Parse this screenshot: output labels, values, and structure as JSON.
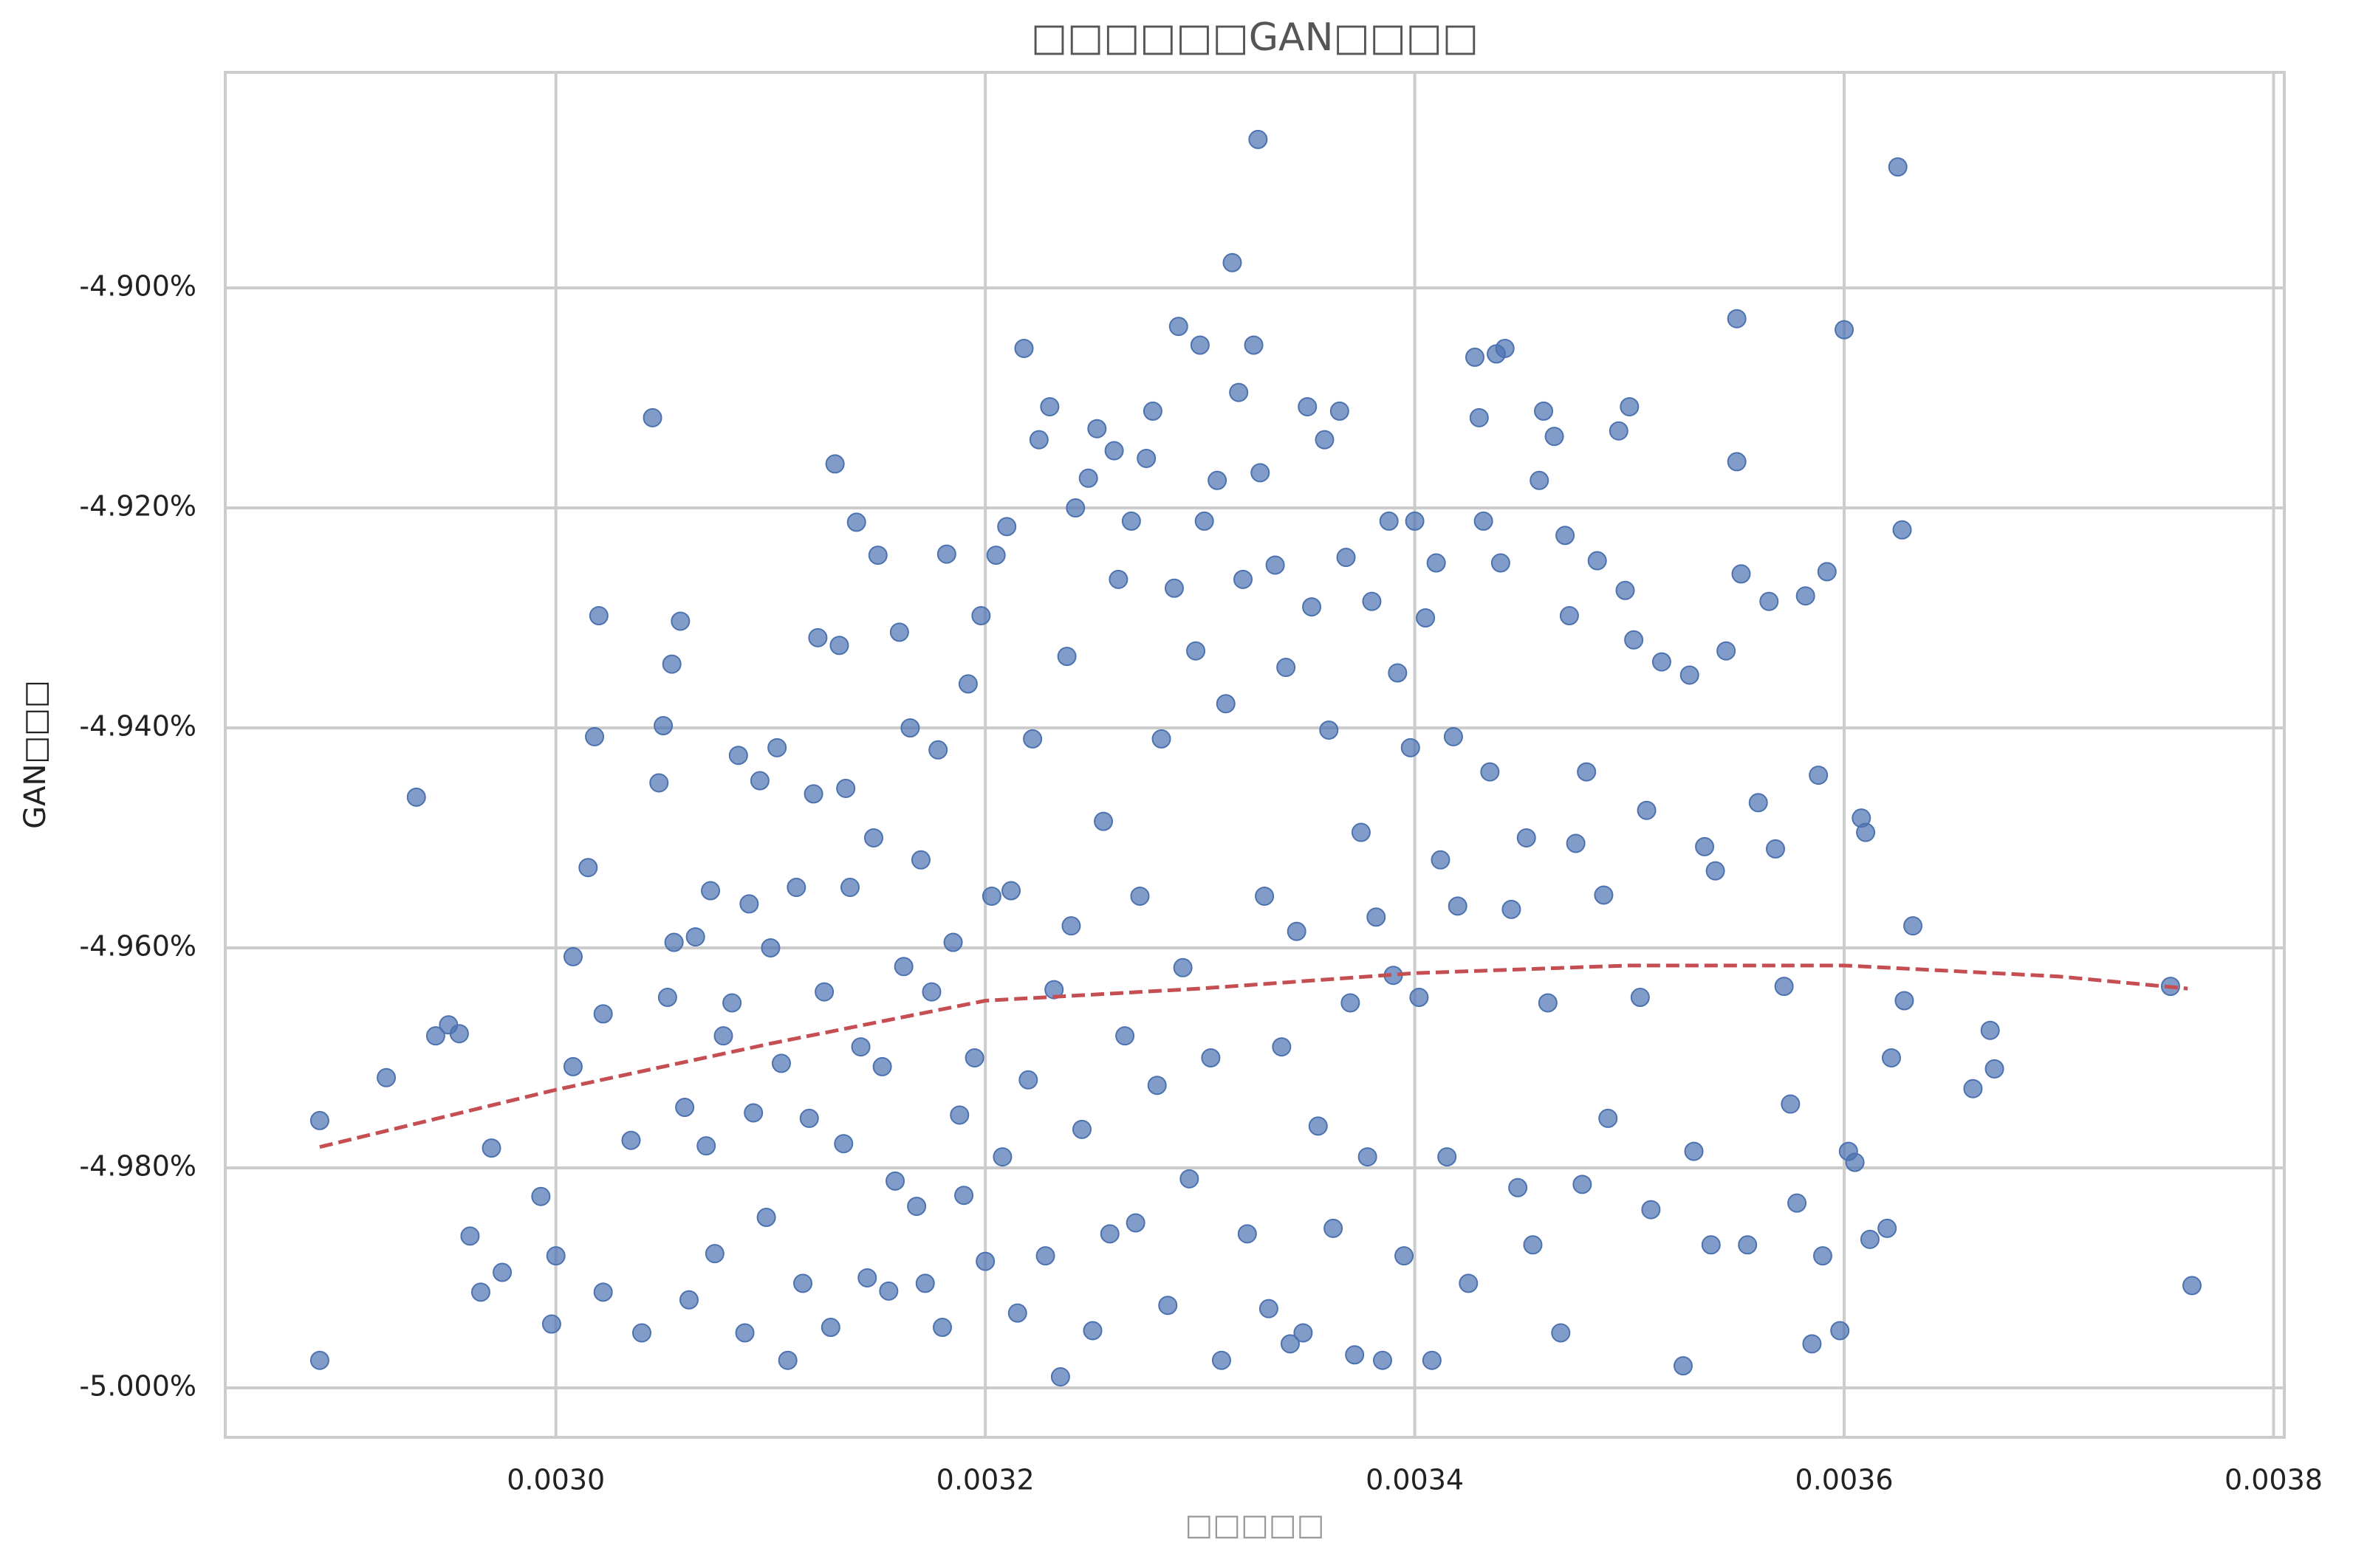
{
  "chart_data": {
    "type": "scatter",
    "title": "□□□□□□GAN□□□□",
    "xlabel": "□□□□□",
    "ylabel": "GAN□□□",
    "xlim": [
      0.002846,
      0.003805
    ],
    "ylim": [
      -5.0045,
      -4.8804
    ],
    "xticks": [
      {
        "value": 0.003,
        "label": "0.0030"
      },
      {
        "value": 0.0032,
        "label": "0.0032"
      },
      {
        "value": 0.0034,
        "label": "0.0034"
      },
      {
        "value": 0.0036,
        "label": "0.0036"
      },
      {
        "value": 0.0038,
        "label": "0.0038"
      }
    ],
    "yticks": [
      {
        "value": -4.9,
        "label": "-4.900%"
      },
      {
        "value": -4.92,
        "label": "-4.920%"
      },
      {
        "value": -4.94,
        "label": "-4.940%"
      },
      {
        "value": -4.96,
        "label": "-4.960%"
      },
      {
        "value": -4.98,
        "label": "-4.980%"
      },
      {
        "value": -5.0,
        "label": "-5.000%"
      }
    ],
    "grid": true,
    "series": [
      {
        "type": "scatter",
        "color": "#4c72b0",
        "x": [
          0.00289,
          0.00289,
          0.002921,
          0.002935,
          0.002944,
          0.00295,
          0.002955,
          0.00296,
          0.002965,
          0.00297,
          0.002975,
          0.002993,
          0.002998,
          0.003,
          0.003008,
          0.003008,
          0.003015,
          0.003018,
          0.00302,
          0.003022,
          0.003022,
          0.003035,
          0.00304,
          0.003045,
          0.003048,
          0.00305,
          0.003052,
          0.003054,
          0.003055,
          0.003058,
          0.00306,
          0.003062,
          0.003065,
          0.00307,
          0.003072,
          0.003074,
          0.003078,
          0.003082,
          0.003085,
          0.003088,
          0.00309,
          0.003092,
          0.003095,
          0.003098,
          0.0031,
          0.003103,
          0.003105,
          0.003108,
          0.003112,
          0.003115,
          0.003118,
          0.00312,
          0.003122,
          0.003125,
          0.003128,
          0.00313,
          0.003132,
          0.003134,
          0.003135,
          0.003137,
          0.00314,
          0.003142,
          0.003145,
          0.003148,
          0.00315,
          0.003152,
          0.003155,
          0.003158,
          0.00316,
          0.003162,
          0.003165,
          0.003168,
          0.00317,
          0.003172,
          0.003175,
          0.003178,
          0.00318,
          0.003182,
          0.003185,
          0.003188,
          0.00319,
          0.003192,
          0.003195,
          0.003198,
          0.0032,
          0.003203,
          0.003205,
          0.003208,
          0.00321,
          0.003212,
          0.003215,
          0.003218,
          0.00322,
          0.003222,
          0.003225,
          0.003228,
          0.00323,
          0.003232,
          0.003235,
          0.003238,
          0.00324,
          0.003242,
          0.003245,
          0.003248,
          0.00325,
          0.003252,
          0.003255,
          0.003258,
          0.00326,
          0.003262,
          0.003265,
          0.003268,
          0.00327,
          0.003272,
          0.003275,
          0.003278,
          0.00328,
          0.003282,
          0.003285,
          0.003288,
          0.00329,
          0.003292,
          0.003295,
          0.003298,
          0.0033,
          0.003302,
          0.003305,
          0.003308,
          0.00331,
          0.003312,
          0.003315,
          0.003318,
          0.00332,
          0.003322,
          0.003325,
          0.003327,
          0.003328,
          0.00333,
          0.003332,
          0.003335,
          0.003338,
          0.00334,
          0.003342,
          0.003345,
          0.003348,
          0.00335,
          0.003352,
          0.003355,
          0.003358,
          0.00336,
          0.003362,
          0.003365,
          0.003368,
          0.00337,
          0.003372,
          0.003375,
          0.003378,
          0.00338,
          0.003382,
          0.003385,
          0.003388,
          0.00339,
          0.003392,
          0.003395,
          0.003398,
          0.0034,
          0.003402,
          0.003405,
          0.003408,
          0.00341,
          0.003412,
          0.003415,
          0.003418,
          0.00342,
          0.003425,
          0.003428,
          0.00343,
          0.003432,
          0.003435,
          0.003438,
          0.00344,
          0.003442,
          0.003445,
          0.003448,
          0.003452,
          0.003455,
          0.003458,
          0.00346,
          0.003462,
          0.003465,
          0.003468,
          0.00347,
          0.003472,
          0.003475,
          0.003478,
          0.00348,
          0.003485,
          0.003488,
          0.00349,
          0.003495,
          0.003498,
          0.0035,
          0.003502,
          0.003505,
          0.003508,
          0.00351,
          0.003515,
          0.003525,
          0.003528,
          0.00353,
          0.003535,
          0.003538,
          0.00354,
          0.003545,
          0.00355,
          0.00355,
          0.003552,
          0.003555,
          0.00356,
          0.003565,
          0.003568,
          0.003572,
          0.003575,
          0.003578,
          0.003582,
          0.003585,
          0.003588,
          0.00359,
          0.003592,
          0.003598,
          0.0036,
          0.003602,
          0.003605,
          0.003608,
          0.00361,
          0.003612,
          0.00362,
          0.003622,
          0.003625,
          0.003627,
          0.003628,
          0.003632,
          0.00366,
          0.003668,
          0.00367,
          0.003752,
          0.003762
        ],
        "values": [
          -4.9975,
          -4.9757,
          -4.9718,
          -4.9463,
          -4.968,
          -4.967,
          -4.9678,
          -4.9862,
          -4.9913,
          -4.9782,
          -4.9895,
          -4.9826,
          -4.9942,
          -4.988,
          -4.9608,
          -4.9708,
          -4.9527,
          -4.9408,
          -4.9298,
          -4.966,
          -4.9913,
          -4.9775,
          -4.995,
          -4.9118,
          -4.945,
          -4.9398,
          -4.9645,
          -4.9342,
          -4.9595,
          -4.9303,
          -4.9745,
          -4.992,
          -4.959,
          -4.978,
          -4.9548,
          -4.9878,
          -4.968,
          -4.965,
          -4.9425,
          -4.995,
          -4.956,
          -4.975,
          -4.9448,
          -4.9845,
          -4.96,
          -4.9418,
          -4.9705,
          -4.9975,
          -4.9545,
          -4.9905,
          -4.9755,
          -4.946,
          -4.9318,
          -4.964,
          -4.9945,
          -4.916,
          -4.9325,
          -4.9778,
          -4.9455,
          -4.9545,
          -4.9213,
          -4.969,
          -4.99,
          -4.95,
          -4.9243,
          -4.9708,
          -4.9912,
          -4.9812,
          -4.9313,
          -4.9617,
          -4.94,
          -4.9835,
          -4.952,
          -4.9905,
          -4.964,
          -4.942,
          -4.9945,
          -4.9242,
          -4.9595,
          -4.9752,
          -4.9825,
          -4.936,
          -4.97,
          -4.9298,
          -4.9885,
          -4.9553,
          -4.9243,
          -4.979,
          -4.9217,
          -4.9548,
          -4.9932,
          -4.9055,
          -4.972,
          -4.941,
          -4.9138,
          -4.988,
          -4.9108,
          -4.9638,
          -4.999,
          -4.9335,
          -4.958,
          -4.92,
          -4.9765,
          -4.9173,
          -4.9948,
          -4.9128,
          -4.9485,
          -4.986,
          -4.9148,
          -4.9265,
          -4.968,
          -4.9212,
          -4.985,
          -4.9553,
          -4.9155,
          -4.9112,
          -4.9725,
          -4.941,
          -4.9925,
          -4.9273,
          -4.9035,
          -4.9618,
          -4.981,
          -4.933,
          -4.9052,
          -4.9212,
          -4.97,
          -4.9175,
          -4.9975,
          -4.9378,
          -4.8977,
          -4.9095,
          -4.9265,
          -4.986,
          -4.9052,
          -4.8865,
          -4.9168,
          -4.9553,
          -4.9928,
          -4.9252,
          -4.969,
          -4.9345,
          -4.996,
          -4.9585,
          -4.995,
          -4.9108,
          -4.929,
          -4.9762,
          -4.9138,
          -4.9402,
          -4.9855,
          -4.9112,
          -4.9245,
          -4.965,
          -4.997,
          -4.9495,
          -4.979,
          -4.9285,
          -4.9572,
          -4.9975,
          -4.9212,
          -4.9625,
          -4.935,
          -4.988,
          -4.9418,
          -4.9212,
          -4.9645,
          -4.93,
          -4.9975,
          -4.925,
          -4.952,
          -4.979,
          -4.9408,
          -4.9562,
          -4.9905,
          -4.9063,
          -4.9118,
          -4.9212,
          -4.944,
          -4.906,
          -4.925,
          -4.9055,
          -4.9565,
          -4.9818,
          -4.95,
          -4.987,
          -4.9175,
          -4.9112,
          -4.965,
          -4.9135,
          -4.995,
          -4.9225,
          -4.9298,
          -4.9505,
          -4.9815,
          -4.944,
          -4.9248,
          -4.9552,
          -4.9755,
          -4.913,
          -4.9275,
          -4.9108,
          -4.932,
          -4.9645,
          -4.9475,
          -4.9838,
          -4.934,
          -4.998,
          -4.9352,
          -4.9785,
          -4.9508,
          -4.987,
          -4.953,
          -4.933,
          -4.9028,
          -4.9158,
          -4.926,
          -4.987,
          -4.9468,
          -4.9285,
          -4.951,
          -4.9635,
          -4.9742,
          -4.9832,
          -4.928,
          -4.996,
          -4.9443,
          -4.988,
          -4.9258,
          -4.9948,
          -4.9038,
          -4.9785,
          -4.9795,
          -4.9482,
          -4.9495,
          -4.9865,
          -4.9855,
          -4.97,
          -4.889,
          -4.922,
          -4.9648,
          -4.958,
          -4.9728,
          -4.9675,
          -4.971,
          -4.9635,
          -4.9907
        ]
      },
      {
        "type": "line",
        "color": "#c44e52",
        "dashed": true,
        "x": [
          0.00289,
          0.003,
          0.0031,
          0.0032,
          0.0033,
          0.0034,
          0.0035,
          0.0036,
          0.0037,
          0.00376
        ],
        "values": [
          -4.9781,
          -4.9729,
          -4.9687,
          -4.9648,
          -4.9637,
          -4.9623,
          -4.9616,
          -4.9616,
          -4.9626,
          -4.9637
        ]
      }
    ]
  }
}
